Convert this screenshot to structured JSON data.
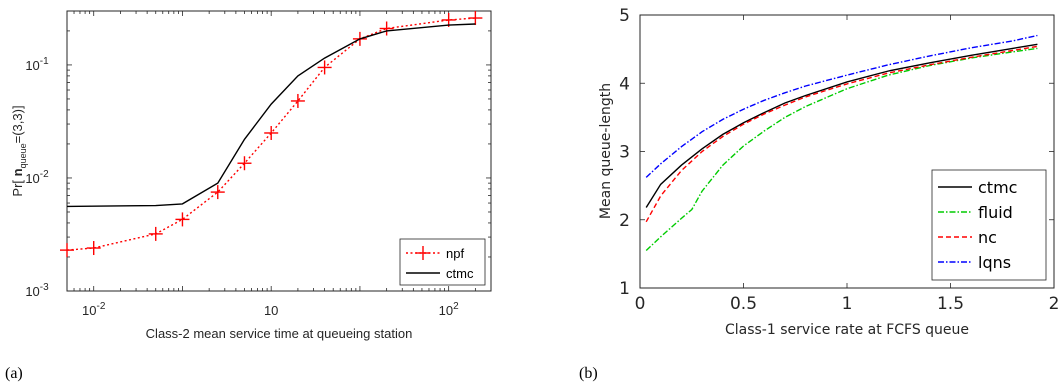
{
  "chart_data": [
    {
      "type": "line",
      "panel_label": "(a)",
      "xlabel": "Class-2 mean service time at queueing station",
      "ylabel": {
        "prefix": "Pr[ ",
        "bold": "n",
        "sub": "queue",
        "suffix": "=(3,3)]"
      },
      "xscale": "log",
      "yscale": "log",
      "xlim": [
        0.005,
        300
      ],
      "ylim": [
        0.001,
        0.3
      ],
      "xticks": [
        {
          "v": 0.01,
          "base": "10",
          "exp": "-2"
        },
        {
          "v": 1,
          "label": "10"
        },
        {
          "v": 100,
          "base": "10",
          "exp": "2"
        }
      ],
      "yticks": [
        {
          "v": 0.001,
          "base": "10",
          "exp": "-3"
        },
        {
          "v": 0.01,
          "base": "10",
          "exp": "-2"
        },
        {
          "v": 0.1,
          "base": "10",
          "exp": "-1"
        }
      ],
      "legend_position": "bottom-right",
      "grid": false,
      "series": [
        {
          "name": "npf",
          "color": "#ff0000",
          "dash": "2,2.5",
          "marker": "plus",
          "x": [
            0.005,
            0.01,
            0.05,
            0.1,
            0.25,
            0.5,
            1,
            2,
            4,
            10,
            20,
            100,
            200
          ],
          "y": [
            0.0023,
            0.0024,
            0.0032,
            0.0043,
            0.0075,
            0.0135,
            0.025,
            0.048,
            0.095,
            0.17,
            0.21,
            0.25,
            0.26
          ]
        },
        {
          "name": "ctmc",
          "color": "#000000",
          "dash": "",
          "marker": "none",
          "x": [
            0.005,
            0.05,
            0.1,
            0.25,
            0.5,
            1,
            2,
            4,
            10,
            20,
            100,
            200
          ],
          "y": [
            0.0056,
            0.0057,
            0.0059,
            0.009,
            0.022,
            0.045,
            0.08,
            0.115,
            0.17,
            0.2,
            0.225,
            0.23
          ]
        }
      ]
    },
    {
      "type": "line",
      "panel_label": "(b)",
      "xlabel": "Class-1 service rate at FCFS queue",
      "ylabel": "Mean queue-length",
      "xlim": [
        0,
        2
      ],
      "ylim": [
        1,
        5
      ],
      "xticks": [
        "0",
        "0.5",
        "1",
        "1.5",
        "2"
      ],
      "yticks": [
        "1",
        "2",
        "3",
        "4",
        "5"
      ],
      "legend_position": "bottom-right",
      "grid": false,
      "series": [
        {
          "name": "ctmc",
          "color": "#000000",
          "dash": "",
          "x": [
            0.03,
            0.1,
            0.2,
            0.3,
            0.4,
            0.5,
            0.6,
            0.7,
            0.8,
            1.0,
            1.2,
            1.4,
            1.6,
            1.8,
            1.92
          ],
          "y": [
            2.18,
            2.52,
            2.8,
            3.04,
            3.25,
            3.42,
            3.57,
            3.71,
            3.82,
            4.02,
            4.18,
            4.3,
            4.41,
            4.51,
            4.57
          ]
        },
        {
          "name": "fluid",
          "color": "#00cc00",
          "dash": "6,2,1.5,2",
          "x": [
            0.03,
            0.1,
            0.2,
            0.25,
            0.3,
            0.4,
            0.5,
            0.6,
            0.7,
            0.8,
            1.0,
            1.2,
            1.4,
            1.6,
            1.8,
            1.92
          ],
          "y": [
            1.55,
            1.75,
            2.02,
            2.15,
            2.42,
            2.8,
            3.08,
            3.3,
            3.5,
            3.66,
            3.92,
            4.12,
            4.26,
            4.37,
            4.46,
            4.51
          ]
        },
        {
          "name": "nc",
          "color": "#ff0000",
          "dash": "5,3",
          "x": [
            0.03,
            0.1,
            0.2,
            0.3,
            0.4,
            0.5,
            0.6,
            0.7,
            0.8,
            1.0,
            1.2,
            1.4,
            1.6,
            1.8,
            1.92
          ],
          "y": [
            1.97,
            2.35,
            2.72,
            3.0,
            3.22,
            3.4,
            3.55,
            3.68,
            3.8,
            3.99,
            4.15,
            4.27,
            4.38,
            4.48,
            4.54
          ]
        },
        {
          "name": "lqns",
          "color": "#0000ff",
          "dash": "6,2,1.5,2",
          "x": [
            0.03,
            0.1,
            0.2,
            0.3,
            0.4,
            0.5,
            0.6,
            0.7,
            0.8,
            1.0,
            1.2,
            1.4,
            1.6,
            1.8,
            1.92
          ],
          "y": [
            2.62,
            2.82,
            3.07,
            3.29,
            3.47,
            3.62,
            3.75,
            3.86,
            3.96,
            4.12,
            4.27,
            4.4,
            4.52,
            4.62,
            4.7
          ]
        }
      ]
    }
  ]
}
